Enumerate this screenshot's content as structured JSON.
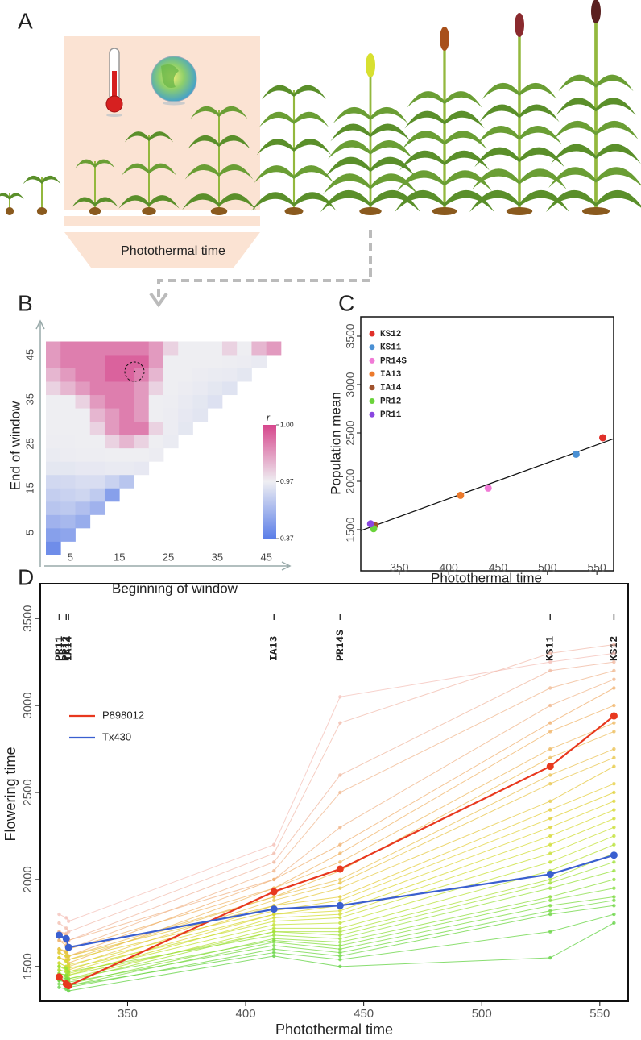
{
  "panels": [
    "A",
    "B",
    "C",
    "D"
  ],
  "illustration": {
    "label": "Photothermal time"
  },
  "chart_data": [
    {
      "type": "heatmap",
      "xlabel": "Beginning of window",
      "ylabel": "End of window",
      "x": [
        1.5,
        4.5,
        7.5,
        10.5,
        13.5,
        16.5,
        19.5,
        22.5,
        25.5,
        28.5,
        31.5,
        34.5,
        37.5,
        40.5,
        43.5,
        46.5
      ],
      "y": [
        1.5,
        4.5,
        7.5,
        10.5,
        13.5,
        16.5,
        19.5,
        22.5,
        25.5,
        28.5,
        31.5,
        34.5,
        37.5,
        40.5,
        43.5,
        46.5
      ],
      "z": [
        [
          0.45,
          null,
          null,
          null,
          null,
          null,
          null,
          null,
          null,
          null,
          null,
          null,
          null,
          null,
          null,
          null
        ],
        [
          0.55,
          0.58,
          null,
          null,
          null,
          null,
          null,
          null,
          null,
          null,
          null,
          null,
          null,
          null,
          null,
          null
        ],
        [
          0.65,
          0.68,
          0.62,
          null,
          null,
          null,
          null,
          null,
          null,
          null,
          null,
          null,
          null,
          null,
          null,
          null
        ],
        [
          0.75,
          0.77,
          0.72,
          0.65,
          null,
          null,
          null,
          null,
          null,
          null,
          null,
          null,
          null,
          null,
          null,
          null
        ],
        [
          0.8,
          0.82,
          0.84,
          0.78,
          0.55,
          null,
          null,
          null,
          null,
          null,
          null,
          null,
          null,
          null,
          null,
          null
        ],
        [
          0.85,
          0.86,
          0.88,
          0.88,
          0.82,
          0.75,
          null,
          null,
          null,
          null,
          null,
          null,
          null,
          null,
          null,
          null
        ],
        [
          0.93,
          0.93,
          0.94,
          0.94,
          0.95,
          0.95,
          0.94,
          null,
          null,
          null,
          null,
          null,
          null,
          null,
          null,
          null
        ],
        [
          0.955,
          0.96,
          0.965,
          0.965,
          0.97,
          0.97,
          0.97,
          0.96,
          null,
          null,
          null,
          null,
          null,
          null,
          null,
          null
        ],
        [
          0.965,
          0.965,
          0.97,
          0.97,
          0.975,
          0.98,
          0.975,
          0.97,
          0.955,
          null,
          null,
          null,
          null,
          null,
          null,
          null
        ],
        [
          0.97,
          0.97,
          0.97,
          0.975,
          0.985,
          0.99,
          0.99,
          0.975,
          0.96,
          0.93,
          null,
          null,
          null,
          null,
          null,
          null
        ],
        [
          0.97,
          0.97,
          0.97,
          0.98,
          0.985,
          0.99,
          0.985,
          0.97,
          0.96,
          0.94,
          0.92,
          null,
          null,
          null,
          null,
          null
        ],
        [
          0.97,
          0.97,
          0.975,
          0.985,
          0.99,
          0.99,
          0.985,
          0.97,
          0.965,
          0.95,
          0.93,
          0.9,
          null,
          null,
          null,
          null
        ],
        [
          0.975,
          0.98,
          0.985,
          0.99,
          0.99,
          0.99,
          0.985,
          0.975,
          0.97,
          0.96,
          0.95,
          0.93,
          0.91,
          null,
          null,
          null
        ],
        [
          0.98,
          0.985,
          0.99,
          0.99,
          0.995,
          0.995,
          0.99,
          0.98,
          0.97,
          0.97,
          0.96,
          0.955,
          0.95,
          0.93,
          null,
          null
        ],
        [
          0.985,
          0.99,
          0.99,
          0.99,
          0.995,
          0.995,
          0.995,
          0.985,
          0.97,
          0.97,
          0.97,
          0.97,
          0.965,
          0.96,
          0.95,
          null
        ],
        [
          0.985,
          0.99,
          0.99,
          0.99,
          0.99,
          0.99,
          0.99,
          0.985,
          0.975,
          0.97,
          0.97,
          0.97,
          0.975,
          0.97,
          0.98,
          0.985
        ]
      ],
      "xlim": [
        0,
        49
      ],
      "ylim": [
        0,
        49
      ],
      "xticks": [
        5,
        15,
        25,
        35,
        45
      ],
      "yticks": [
        5,
        15,
        25,
        35,
        45
      ],
      "colorbar": {
        "title": "r",
        "ticks": [
          {
            "value": 1.0,
            "label": "1.00"
          },
          {
            "value": 0.97,
            "label": "0.97"
          },
          {
            "value": 0.37,
            "label": "0.37"
          }
        ],
        "colors": [
          "#5b7ee8",
          "#eeeef2",
          "#d6468c"
        ]
      }
    },
    {
      "type": "scatter",
      "xlabel": "Photothermal time",
      "ylabel": "Population mean",
      "xlim": [
        311,
        567
      ],
      "ylim": [
        1075,
        3700
      ],
      "xticks": [
        350,
        400,
        450,
        500,
        550
      ],
      "yticks": [
        1500,
        2000,
        2500,
        3000,
        3500
      ],
      "series": [
        {
          "name": "KS12",
          "color": "#e0302a",
          "x": [
            556
          ],
          "values": [
            2450
          ]
        },
        {
          "name": "KS11",
          "color": "#4a90d4",
          "x": [
            529
          ],
          "values": [
            2280
          ]
        },
        {
          "name": "PR14S",
          "color": "#f07ad6",
          "x": [
            440
          ],
          "values": [
            1930
          ]
        },
        {
          "name": "IA13",
          "color": "#ec7a2c",
          "x": [
            412
          ],
          "values": [
            1855
          ]
        },
        {
          "name": "IA14",
          "color": "#a0522d",
          "x": [
            325
          ],
          "values": [
            1545
          ]
        },
        {
          "name": "PR12",
          "color": "#6ad33a",
          "x": [
            324
          ],
          "values": [
            1510
          ]
        },
        {
          "name": "PR11",
          "color": "#8a46e0",
          "x": [
            321
          ],
          "values": [
            1560
          ]
        }
      ],
      "trend": {
        "x": [
          311,
          567
        ],
        "y": [
          1490,
          2440
        ]
      },
      "legend": "top-left"
    },
    {
      "type": "line",
      "xlabel": "Photothermal time",
      "ylabel": "Flowering time",
      "x": [
        321,
        324,
        325,
        412,
        440,
        529,
        556
      ],
      "environments": [
        "PR11",
        "PR12",
        "IA14",
        "IA13",
        "PR14S",
        "KS11",
        "KS12"
      ],
      "xlim": [
        313,
        562
      ],
      "ylim": [
        1300,
        3700
      ],
      "xticks": [
        350,
        400,
        450,
        500,
        550
      ],
      "yticks": [
        1500,
        2000,
        2500,
        3000,
        3500
      ],
      "series": [
        {
          "name": "P898012",
          "color": "#e8381e",
          "values": [
            1440,
            1400,
            1390,
            1930,
            2060,
            2650,
            2940
          ]
        },
        {
          "name": "Tx430",
          "color": "#3a5fd0",
          "values": [
            1680,
            1660,
            1610,
            1830,
            1850,
            2030,
            2140
          ]
        }
      ],
      "background": [
        {
          "color": "#f4c0b8",
          "values": [
            1800,
            1780,
            1760,
            2200,
            3050,
            3250,
            3300
          ]
        },
        {
          "color": "#f2bcae",
          "values": [
            1750,
            1720,
            1700,
            2150,
            2900,
            3300,
            3350
          ]
        },
        {
          "color": "#f0b8a0",
          "values": [
            1700,
            1690,
            1650,
            2100,
            2600,
            3200,
            3250
          ]
        },
        {
          "color": "#f0b890",
          "values": [
            1650,
            1640,
            1600,
            2050,
            2500,
            3100,
            3200
          ]
        },
        {
          "color": "#f0b488",
          "values": [
            1700,
            1680,
            1650,
            2000,
            2300,
            3000,
            3150
          ]
        },
        {
          "color": "#f0b070",
          "values": [
            1600,
            1580,
            1560,
            2000,
            2200,
            2900,
            3100
          ]
        },
        {
          "color": "#f0b468",
          "values": [
            1650,
            1620,
            1600,
            1950,
            2150,
            2850,
            3000
          ]
        },
        {
          "color": "#eeb860",
          "values": [
            1550,
            1540,
            1520,
            1950,
            2100,
            2750,
            2900
          ]
        },
        {
          "color": "#ecbc58",
          "values": [
            1600,
            1590,
            1560,
            1900,
            2050,
            2700,
            2850
          ]
        },
        {
          "color": "#eac050",
          "values": [
            1580,
            1560,
            1540,
            1900,
            2000,
            2600,
            2750
          ]
        },
        {
          "color": "#e8c448",
          "values": [
            1550,
            1530,
            1500,
            1880,
            1980,
            2550,
            2700
          ]
        },
        {
          "color": "#e6c840",
          "values": [
            1600,
            1580,
            1560,
            1850,
            1950,
            2450,
            2650
          ]
        },
        {
          "color": "#e4cc3a",
          "values": [
            1520,
            1500,
            1480,
            1850,
            1900,
            2400,
            2550
          ]
        },
        {
          "color": "#e0d036",
          "values": [
            1580,
            1560,
            1540,
            1820,
            1880,
            2350,
            2500
          ]
        },
        {
          "color": "#dcd432",
          "values": [
            1500,
            1490,
            1470,
            1800,
            1850,
            2300,
            2450
          ]
        },
        {
          "color": "#d6d830",
          "values": [
            1550,
            1530,
            1510,
            1800,
            1820,
            2250,
            2400
          ]
        },
        {
          "color": "#d0dc30",
          "values": [
            1480,
            1470,
            1450,
            1780,
            1800,
            2200,
            2350
          ]
        },
        {
          "color": "#c8de30",
          "values": [
            1520,
            1500,
            1490,
            1760,
            1780,
            2150,
            2300
          ]
        },
        {
          "color": "#c0e030",
          "values": [
            1500,
            1480,
            1460,
            1740,
            1750,
            2100,
            2250
          ]
        },
        {
          "color": "#b6e032",
          "values": [
            1460,
            1450,
            1430,
            1720,
            1720,
            2050,
            2200
          ]
        },
        {
          "color": "#aae034",
          "values": [
            1480,
            1470,
            1450,
            1700,
            1700,
            2000,
            2150
          ]
        },
        {
          "color": "#a0e036",
          "values": [
            1450,
            1440,
            1420,
            1700,
            1680,
            1980,
            2100
          ]
        },
        {
          "color": "#96e038",
          "values": [
            1500,
            1490,
            1470,
            1680,
            1660,
            1950,
            2050
          ]
        },
        {
          "color": "#8cde3a",
          "values": [
            1430,
            1420,
            1400,
            1660,
            1640,
            1900,
            2000
          ]
        },
        {
          "color": "#82dc3c",
          "values": [
            1460,
            1450,
            1430,
            1650,
            1620,
            1880,
            1950
          ]
        },
        {
          "color": "#7ada3e",
          "values": [
            1420,
            1410,
            1390,
            1640,
            1600,
            1850,
            1900
          ]
        },
        {
          "color": "#72d840",
          "values": [
            1440,
            1430,
            1410,
            1620,
            1580,
            1820,
            1880
          ]
        },
        {
          "color": "#6cd640",
          "values": [
            1400,
            1390,
            1380,
            1600,
            1560,
            1800,
            1850
          ]
        },
        {
          "color": "#66d440",
          "values": [
            1420,
            1410,
            1390,
            1580,
            1540,
            1700,
            1800
          ]
        },
        {
          "color": "#60d240",
          "values": [
            1380,
            1370,
            1360,
            1560,
            1500,
            1550,
            1750
          ]
        }
      ],
      "legend": "top-left"
    }
  ]
}
